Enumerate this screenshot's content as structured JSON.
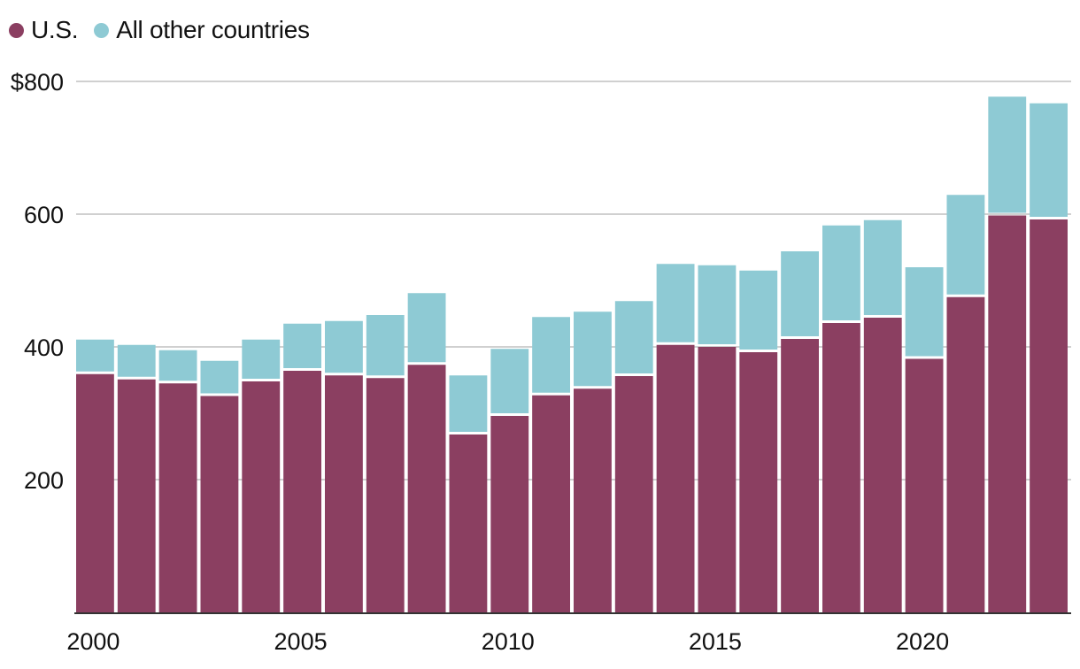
{
  "legend": [
    {
      "label": "U.S.",
      "color": "#8b3f61"
    },
    {
      "label": "All other countries",
      "color": "#8ecad4"
    }
  ],
  "chart_data": {
    "type": "bar",
    "stacked": true,
    "title": "",
    "xlabel": "",
    "ylabel": "",
    "ylim": [
      0,
      800
    ],
    "y_ticks": [
      200,
      400,
      600,
      800
    ],
    "y_tick_labels": [
      "200",
      "400",
      "600",
      "$800"
    ],
    "x_tick_labels": [
      "2000",
      "2005",
      "2010",
      "2015",
      "2020"
    ],
    "grid": true,
    "legend_position": "top-left",
    "categories": [
      "2000",
      "2001",
      "2002",
      "2003",
      "2004",
      "2005",
      "2006",
      "2007",
      "2008",
      "2009",
      "2010",
      "2011",
      "2012",
      "2013",
      "2014",
      "2015",
      "2016",
      "2017",
      "2018",
      "2019",
      "2020",
      "2021",
      "2022",
      "2023"
    ],
    "series": [
      {
        "name": "U.S.",
        "color": "#8b3f61",
        "values": [
          359,
          351,
          345,
          326,
          348,
          364,
          357,
          353,
          373,
          268,
          296,
          327,
          337,
          356,
          403,
          400,
          392,
          412,
          436,
          444,
          382,
          475,
          598,
          592
        ]
      },
      {
        "name": "All other countries",
        "color": "#8ecad4",
        "values": [
          52,
          52,
          50,
          53,
          63,
          71,
          82,
          95,
          108,
          89,
          101,
          118,
          116,
          113,
          122,
          123,
          123,
          132,
          147,
          147,
          138,
          154,
          179,
          175
        ]
      }
    ]
  }
}
